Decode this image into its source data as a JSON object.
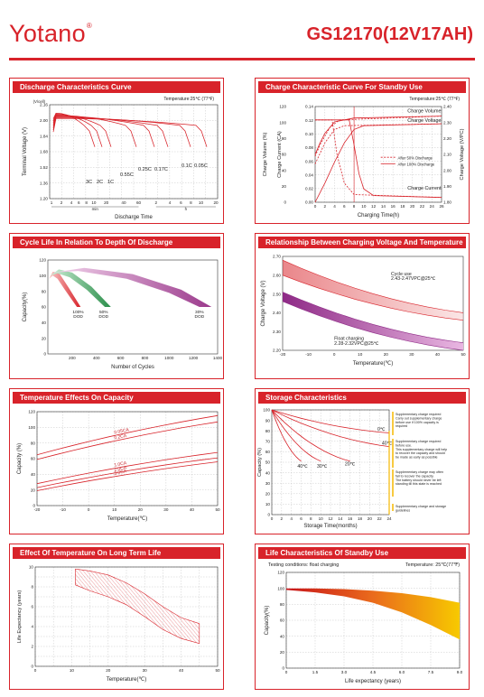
{
  "header": {
    "brand": "Yotano",
    "brand_mark": "®",
    "model": "GS12170(12V17AH)"
  },
  "colors": {
    "accent": "#d8232a"
  },
  "chart_data": [
    {
      "type": "line",
      "title": "Discharge Characteristics Curve",
      "annotation": "Temperature:25℃ (77℉)",
      "ylabel": "Terminal Voltage (V)",
      "yunit": "(V/cell)",
      "xlabel": "Discharge Time",
      "xunits": [
        "min",
        "h"
      ],
      "yticks": [
        "2.16",
        "2.00",
        "1.84",
        "1.68",
        "1.52",
        "1.36",
        "1.20"
      ],
      "xticks": [
        "1",
        "2",
        "4",
        "6",
        "8",
        "10",
        "20",
        "40",
        "60",
        "2",
        "4",
        "6",
        "8",
        "10",
        "20"
      ],
      "ylim": [
        1.2,
        2.2
      ],
      "series": [
        {
          "name": "3C",
          "end_voltage": 1.75
        },
        {
          "name": "2C",
          "end_voltage": 1.75
        },
        {
          "name": "1C",
          "end_voltage": 1.75
        },
        {
          "name": "0.55C",
          "end_voltage": 1.75
        },
        {
          "name": "0.25C",
          "end_voltage": 1.75
        },
        {
          "name": "0.17C",
          "end_voltage": 1.75
        },
        {
          "name": "0.1C",
          "end_voltage": 1.75
        },
        {
          "name": "0.05C",
          "end_voltage": 1.75
        }
      ]
    },
    {
      "type": "line",
      "title": "Charge Characteristic Curve For Standby Use",
      "annotation": "Temperature:25℃ (77℉)",
      "ylabel_left1": "Charge Volume (%)",
      "ylabel_left2": "Charge Current (CA)",
      "ylabel_right": "Charge Voltage (V/PC)",
      "xlabel": "Charging Time(h)",
      "ticks_volume": [
        "120",
        "100",
        "80",
        "60",
        "40",
        "20",
        "0"
      ],
      "ticks_current": [
        "0.14",
        "0.12",
        "0.10",
        "0.08",
        "0.06",
        "0.04",
        "0.02",
        "0.00"
      ],
      "ticks_voltage": [
        "2.40",
        "2.30",
        "2.20",
        "2.10",
        "2.00",
        "1.90",
        "1.80"
      ],
      "xticks": [
        "0",
        "2",
        "4",
        "6",
        "8",
        "10",
        "12",
        "14",
        "16",
        "18",
        "20",
        "22",
        "24",
        "26"
      ],
      "labels": [
        "Charge Volume",
        "Charge Voltage",
        "Charge Current"
      ],
      "legend": [
        "After 50% Discharge",
        "After 100% Discharge"
      ]
    },
    {
      "type": "area",
      "title": "Cycle Life In Relation To Depth Of Discharge",
      "ylabel": "Capacity(%)",
      "xlabel": "Number of Cycles",
      "yticks": [
        "120",
        "100",
        "80",
        "60",
        "40",
        "20",
        "0"
      ],
      "xticks": [
        "200",
        "400",
        "600",
        "800",
        "1000",
        "1200",
        "1400"
      ],
      "series": [
        {
          "name": "100% DOD",
          "cycles_end": 270
        },
        {
          "name": "50% DOD",
          "cycles_end": 520
        },
        {
          "name": "30% DOD",
          "cycles_end": 1350
        }
      ],
      "dod_labels": [
        [
          "100%",
          "DOD"
        ],
        [
          "50%",
          "DOD"
        ],
        [
          "30%",
          "DOD"
        ]
      ]
    },
    {
      "type": "area",
      "title": "Relationship Between Charging Voltage And Temperature",
      "ylabel": "Charge Voltage (V)",
      "xlabel": "Temperature(℃)",
      "yticks": [
        "2.70",
        "2.60",
        "2.50",
        "2.40",
        "2.30",
        "2.20"
      ],
      "xticks": [
        "-20",
        "-10",
        "0",
        "10",
        "20",
        "30",
        "40",
        "50"
      ],
      "series": [
        {
          "name": "Cycle use",
          "label": [
            "Cycle use",
            "2.43-2.47VPC@25℃"
          ],
          "v_at_minus20": [
            2.6,
            2.68
          ],
          "v_at_50": [
            2.36,
            2.4
          ]
        },
        {
          "name": "Float charging",
          "label": [
            "Float charging",
            "2.28-2.32VPC@25℃"
          ],
          "v_at_minus20": [
            2.46,
            2.51
          ],
          "v_at_50": [
            2.2,
            2.24
          ]
        }
      ]
    },
    {
      "type": "line",
      "title": "Temperature Effects On Capacity",
      "ylabel": "Capacity (%)",
      "xlabel": "Temperature(℃)",
      "yticks": [
        "120",
        "100",
        "80",
        "60",
        "40",
        "20",
        "0"
      ],
      "xticks": [
        "-20",
        "-10",
        "0",
        "10",
        "20",
        "30",
        "40",
        "50"
      ],
      "xlim": [
        -20,
        50
      ],
      "ylim": [
        0,
        120
      ],
      "series": [
        {
          "name": "0.05CA",
          "x": [
            -20,
            50
          ],
          "y": [
            65,
            115
          ]
        },
        {
          "name": "0.2CA",
          "x": [
            -20,
            50
          ],
          "y": [
            59,
            107
          ]
        },
        {
          "name": "1.0CA",
          "x": [
            -20,
            50
          ],
          "y": [
            28,
            68
          ]
        },
        {
          "name": "2.0CA",
          "x": [
            -20,
            50
          ],
          "y": [
            23,
            61
          ]
        },
        {
          "name": "3.0CA",
          "x": [
            -20,
            50
          ],
          "y": [
            19,
            56
          ]
        }
      ]
    },
    {
      "type": "line",
      "title": "Storage Characteristics",
      "ylabel": "Capacity (%)",
      "xlabel": "Storage Time(months)",
      "yticks": [
        "100",
        "90",
        "80",
        "70",
        "60",
        "50",
        "40",
        "30",
        "20",
        "10",
        "0"
      ],
      "xticks": [
        "0",
        "2",
        "4",
        "6",
        "8",
        "10",
        "12",
        "14",
        "16",
        "18",
        "20",
        "22",
        "24"
      ],
      "series": [
        {
          "name": "0℃",
          "end_month": 24,
          "end_capacity": 78
        },
        {
          "name": "20℃",
          "end_month": 16,
          "end_capacity": 51
        },
        {
          "name": "30℃",
          "end_month": 10,
          "end_capacity": 51
        },
        {
          "name": "40℃",
          "end_month": 6,
          "end_capacity": 51
        },
        {
          "name": "40℃",
          "end_month": 24,
          "end_capacity": 65
        }
      ],
      "notes": [
        [
          "Supplementary charge required",
          "Carry out supplementary charge",
          "before use if 100% capacity is",
          "required"
        ],
        [
          "Supplementary charge required",
          "before use.",
          "This supplementary charge will help",
          "to recover the capacity and should",
          "be made as early as possible"
        ],
        [
          "Supplementary charge may often",
          "fail to recover the capacity.",
          "The battery should never be left",
          "standing till this state is reached"
        ],
        [
          "Supplementary charge and storage",
          "guidelines"
        ]
      ]
    },
    {
      "type": "area",
      "title": "Effect Of Temperature On Long Term Life",
      "ylabel": "Life Expectancy (years)",
      "xlabel": "Temperature(℃)",
      "yticks": [
        "10",
        "8",
        "6",
        "4",
        "2",
        "0"
      ],
      "xticks": [
        "0",
        "10",
        "20",
        "30",
        "40",
        "50"
      ],
      "band": {
        "x": [
          11,
          15,
          20,
          25,
          30,
          35,
          40,
          45
        ],
        "upper": [
          9.8,
          9.6,
          9.2,
          8.4,
          7.3,
          6.0,
          4.9,
          4.3
        ],
        "lower": [
          8.2,
          7.6,
          7.0,
          6.2,
          5.0,
          3.7,
          2.8,
          2.3
        ]
      }
    },
    {
      "type": "area",
      "title": "Life Characteristics Of Standby Use",
      "annotation_left": "Testing conditions: float charging",
      "annotation_right": "Temperature: 25℃(77℉)",
      "ylabel": "Capacity(%)",
      "xlabel": "Life expectancy (years)",
      "yticks": [
        "120",
        "100",
        "80",
        "60",
        "40",
        "20",
        "0"
      ],
      "xticks": [
        "0",
        "1.5",
        "3.0",
        "4.5",
        "6.0",
        "7.5",
        "9.0"
      ],
      "band": {
        "x": [
          0,
          1.5,
          3,
          4.5,
          6,
          7.5,
          9
        ],
        "upper": [
          100,
          100,
          99,
          97,
          94,
          89,
          82
        ],
        "lower": [
          98,
          95,
          90,
          82,
          70,
          54,
          36
        ]
      }
    }
  ]
}
